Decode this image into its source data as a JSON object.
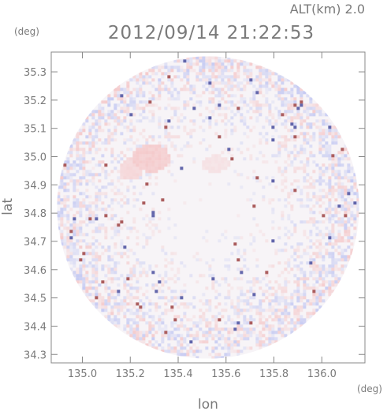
{
  "header": {
    "alt_label": "ALT(km) 2.0",
    "datetime": "2012/09/14 21:22:53"
  },
  "chart_data": {
    "type": "heatmap",
    "title": "2012/09/14 21:22:53",
    "subtitle": "ALT(km) 2.0",
    "xlabel": "lon",
    "ylabel": "lat",
    "x_unit": "(deg)",
    "y_unit": "(deg)",
    "xlim": [
      134.87,
      136.18
    ],
    "ylim": [
      34.27,
      35.37
    ],
    "x_ticks": [
      135.0,
      135.2,
      135.4,
      135.6,
      135.8,
      136.0
    ],
    "x_tick_labels": [
      "135.0",
      "135.2",
      "135.4",
      "135.6",
      "135.8",
      "136.0"
    ],
    "y_ticks": [
      34.3,
      34.4,
      34.5,
      34.6,
      34.7,
      34.8,
      34.9,
      35.0,
      35.1,
      35.2,
      35.3
    ],
    "y_tick_labels": [
      "34.3",
      "34.4",
      "34.5",
      "34.6",
      "34.7",
      "34.8",
      "34.9",
      "35.0",
      "35.1",
      "35.2",
      "35.3"
    ],
    "grid": false,
    "colors": {
      "positive": "#f3a8a8",
      "negative": "#a9b2f0",
      "neutral": "#f7f4f7",
      "frame": "#888888"
    },
    "coverage": {
      "center_lon": 135.525,
      "center_lat": 34.82,
      "radius_lat_deg": 0.535
    },
    "features": [
      {
        "kind": "positive-patch",
        "lon": 135.28,
        "lat": 35.0,
        "rlon": 0.08,
        "rlat": 0.05,
        "strength": 0.55
      },
      {
        "kind": "positive-patch",
        "lon": 135.2,
        "lat": 34.96,
        "rlon": 0.05,
        "rlat": 0.04,
        "strength": 0.4
      },
      {
        "kind": "positive-patch",
        "lon": 135.55,
        "lat": 34.98,
        "rlon": 0.06,
        "rlat": 0.03,
        "strength": 0.25
      }
    ]
  }
}
